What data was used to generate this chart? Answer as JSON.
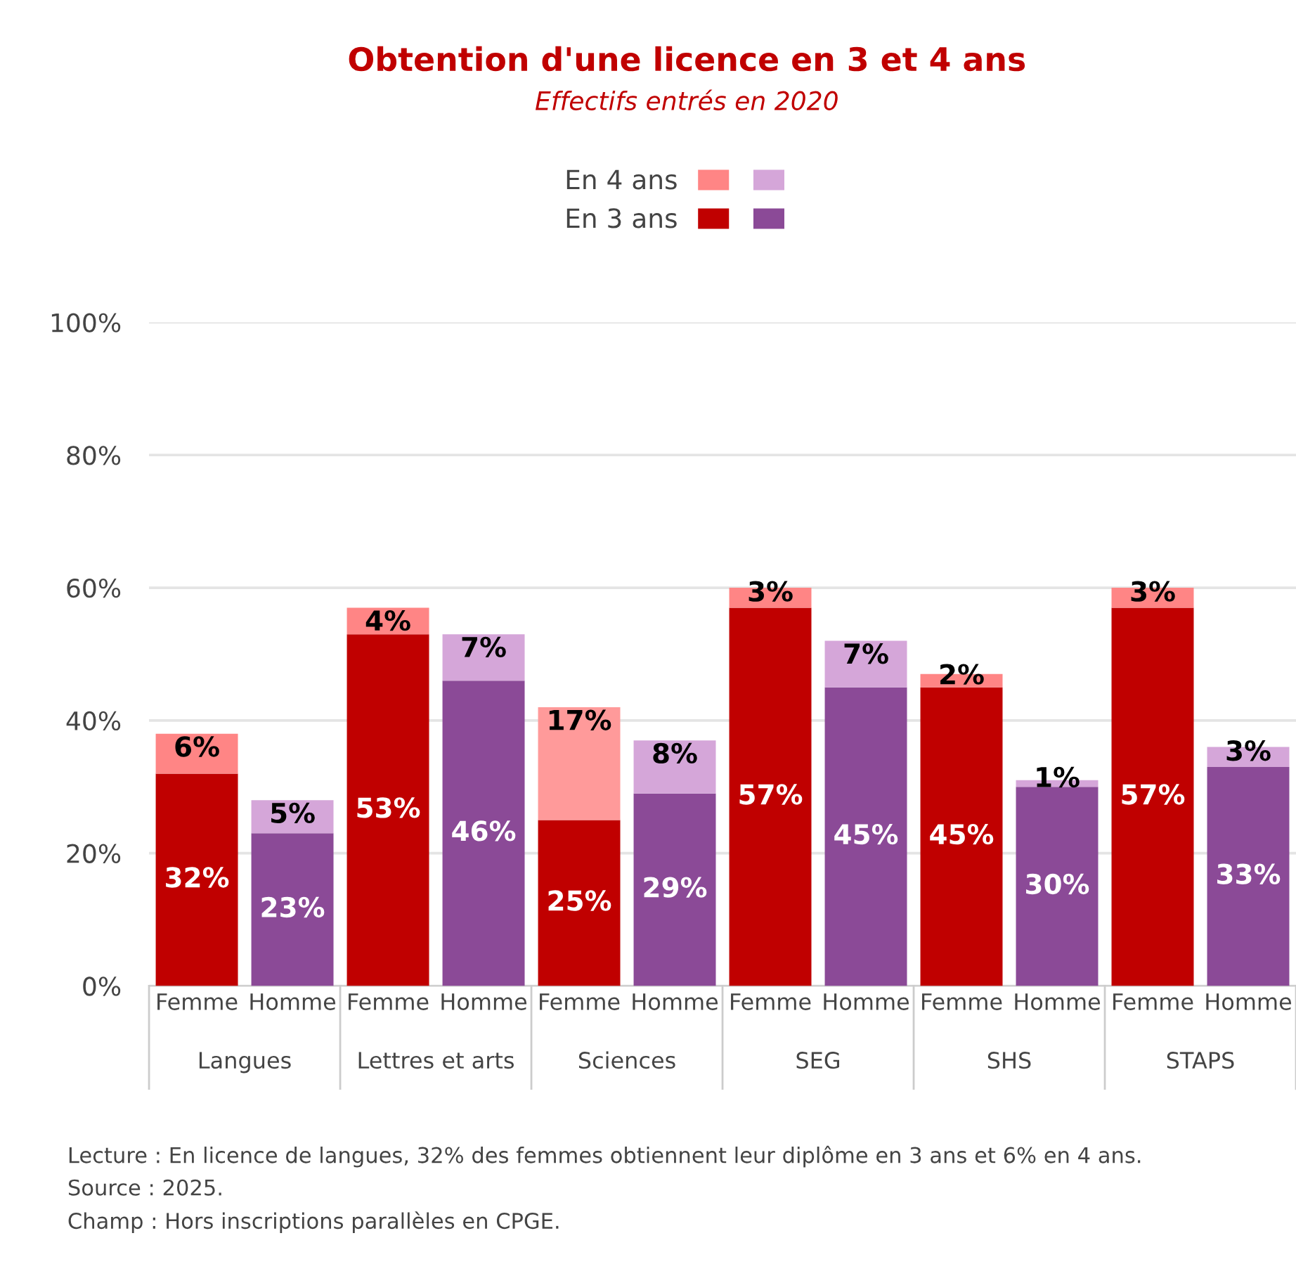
{
  "chart_data": {
    "type": "bar",
    "title": "Obtention d'une licence en 3 et 4 ans",
    "subtitle": "Effectifs entrés en 2020",
    "categories": [
      "Femme",
      "Homme",
      "Femme",
      "Homme",
      "Femme",
      "Homme",
      "Femme",
      "Homme",
      "Femme",
      "Homme",
      "Femme",
      "Homme"
    ],
    "stacked": true,
    "legend": "top",
    "grid": "y",
    "ylim": [
      0,
      100
    ],
    "yticks": [
      {
        "value": 0,
        "label": "0%"
      },
      {
        "value": 20,
        "label": "20%"
      },
      {
        "value": 40,
        "label": "40%"
      },
      {
        "value": 60,
        "label": "60%"
      },
      {
        "value": 80,
        "label": "80%"
      },
      {
        "value": 100,
        "label": "100%"
      }
    ],
    "series": [
      {
        "name": "En 3 ans",
        "colors": [
          "#c00000",
          "#8b4a97",
          "#c00000",
          "#8b4a97",
          "#c00000",
          "#8b4a97",
          "#c00000",
          "#8b4a97",
          "#c00000",
          "#8b4a97",
          "#c00000",
          "#8b4a97"
        ],
        "values": [
          32,
          23,
          53,
          46,
          25,
          29,
          57,
          45,
          45,
          30,
          57,
          33
        ],
        "value_labels": [
          "32%",
          "23%",
          "53%",
          "46%",
          "25%",
          "29%",
          "57%",
          "45%",
          "45%",
          "30%",
          "57%",
          "33%"
        ]
      },
      {
        "name": "En 4 ans",
        "colors": [
          "#ff8585",
          "#d5a6d9",
          "#ff8585",
          "#d5a6d9",
          "#ff9a9a",
          "#d5a6d9",
          "#ff8585",
          "#d5a6d9",
          "#ff8585",
          "#d5a6d9",
          "#ff8585",
          "#d5a6d9"
        ],
        "values": [
          6,
          5,
          4,
          7,
          17,
          8,
          3,
          7,
          2,
          1,
          3,
          3
        ],
        "value_labels": [
          "6%",
          "5%",
          "4%",
          "7%",
          "17%",
          "8%",
          "3%",
          "7%",
          "2%",
          "1%",
          "3%",
          "3%"
        ]
      }
    ],
    "annotations": [
      "Langues",
      "Lettres et arts",
      "Sciences",
      "SEG",
      "SHS",
      "STAPS",
      "Lecture : En licence de langues, 32% des femmes obtiennent leur diplôme en 3 ans et 6% en 4 ans.",
      "Source : 2025.",
      "Champ : Hors inscriptions parallèles en CPGE."
    ]
  }
}
